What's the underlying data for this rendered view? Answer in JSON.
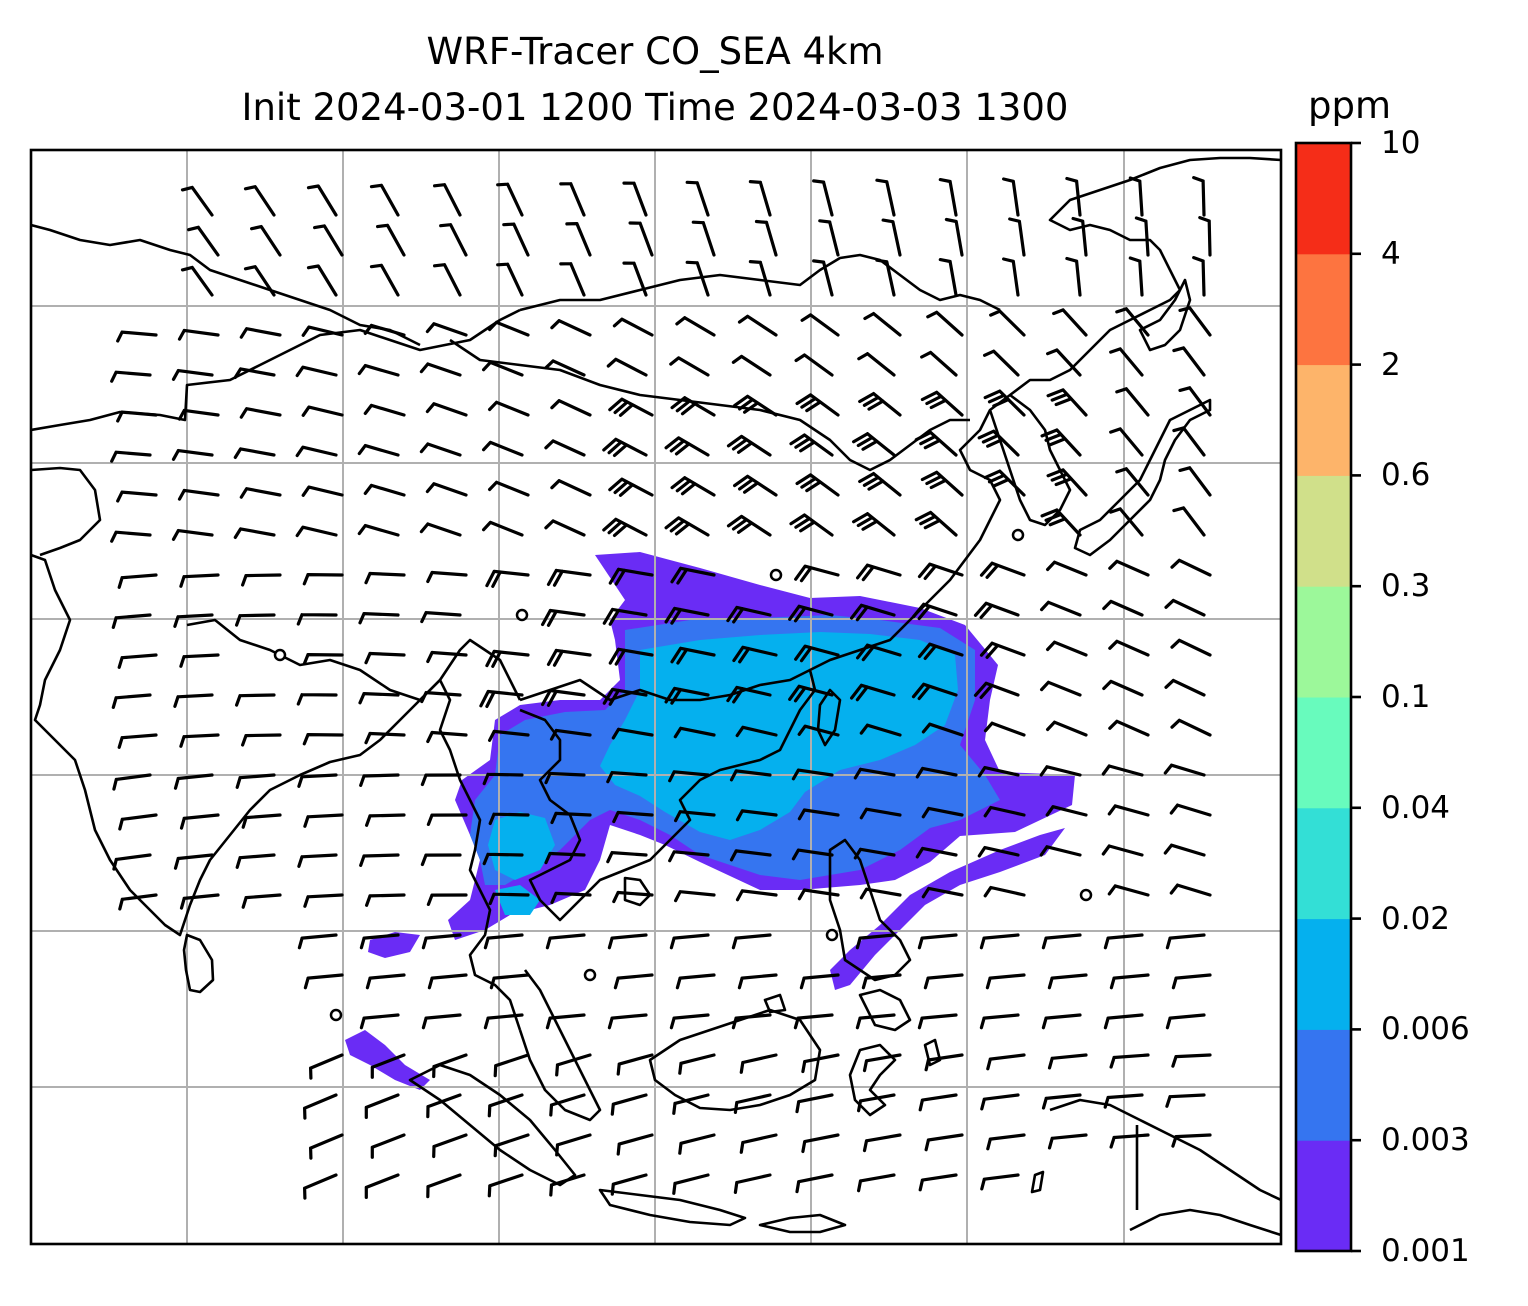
{
  "title": {
    "line1": "WRF-Tracer CO_SEA 4km",
    "line2": "Init 2024-03-01 1200 Time 2024-03-03 1300"
  },
  "colorbar": {
    "unit": "ppm",
    "levels": [
      "0.001",
      "0.003",
      "0.006",
      "0.02",
      "0.04",
      "0.1",
      "0.3",
      "0.6",
      "2",
      "4",
      "10"
    ],
    "colors": [
      "#6a2cf5",
      "#3575f0",
      "#05b0ee",
      "#33dfd6",
      "#68fbbd",
      "#9cf89a",
      "#d0e08a",
      "#fdb46a",
      "#fd7440",
      "#f52d18"
    ]
  },
  "map": {
    "coastline_color": "#000000",
    "grid_color": "#b0b0b0",
    "barb_color": "#000000",
    "tracer_colors": {
      "low": "#6a2cf5",
      "mid": "#3575f0",
      "high": "#05b0ee"
    }
  }
}
